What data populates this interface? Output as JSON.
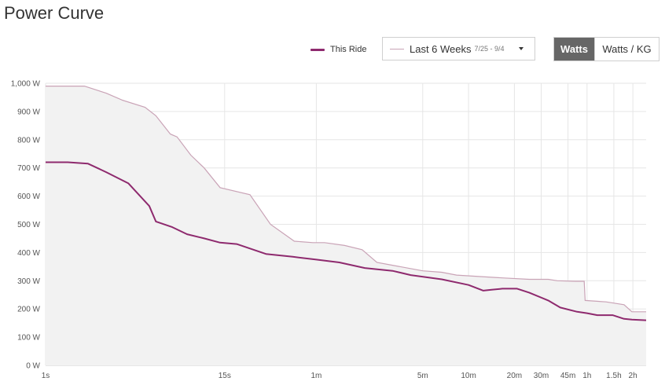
{
  "header": {
    "title": "Power Curve"
  },
  "legend": {
    "this_ride_label": "This Ride"
  },
  "range_select": {
    "label": "Last 6 Weeks",
    "dates": "7/25 - 9/4"
  },
  "unit_toggle": {
    "watts_label": "Watts",
    "watts_kg_label": "Watts / KG",
    "selected": "Watts"
  },
  "colors": {
    "this_ride": "#8e2a6e",
    "period_best": "#c9a3b6",
    "area_fill": "#f2f2f2",
    "grid": "#e6e6e6"
  },
  "chart_data": {
    "type": "line",
    "title": "Power Curve",
    "x_scale": "log",
    "x_unit": "seconds",
    "y_unit": "W",
    "ylim": [
      0,
      1000
    ],
    "xlim": [
      1,
      8800
    ],
    "y_ticks": [
      {
        "value": 0,
        "label": "0 W"
      },
      {
        "value": 100,
        "label": "100 W"
      },
      {
        "value": 200,
        "label": "200 W"
      },
      {
        "value": 300,
        "label": "300 W"
      },
      {
        "value": 400,
        "label": "400 W"
      },
      {
        "value": 500,
        "label": "500 W"
      },
      {
        "value": 600,
        "label": "600 W"
      },
      {
        "value": 700,
        "label": "700 W"
      },
      {
        "value": 800,
        "label": "800 W"
      },
      {
        "value": 900,
        "label": "900 W"
      },
      {
        "value": 1000,
        "label": "1,000 W"
      }
    ],
    "x_ticks": [
      {
        "value": 1,
        "label": "1s"
      },
      {
        "value": 15,
        "label": "15s"
      },
      {
        "value": 60,
        "label": "1m"
      },
      {
        "value": 300,
        "label": "5m"
      },
      {
        "value": 600,
        "label": "10m"
      },
      {
        "value": 1200,
        "label": "20m"
      },
      {
        "value": 1800,
        "label": "30m"
      },
      {
        "value": 2700,
        "label": "45m"
      },
      {
        "value": 3600,
        "label": "1h"
      },
      {
        "value": 5400,
        "label": "1.5h"
      },
      {
        "value": 7200,
        "label": "2h"
      }
    ],
    "grid": true,
    "legend_position": "top-right",
    "series": [
      {
        "name": "Last 6 Weeks",
        "points": [
          [
            1,
            990
          ],
          [
            1.8,
            990
          ],
          [
            2.5,
            965
          ],
          [
            3.2,
            940
          ],
          [
            4.5,
            915
          ],
          [
            5.3,
            885
          ],
          [
            6.6,
            820
          ],
          [
            7.3,
            810
          ],
          [
            9,
            745
          ],
          [
            11,
            700
          ],
          [
            14,
            630
          ],
          [
            22,
            605
          ],
          [
            30,
            500
          ],
          [
            43,
            440
          ],
          [
            57,
            435
          ],
          [
            68,
            435
          ],
          [
            92,
            425
          ],
          [
            120,
            410
          ],
          [
            150,
            365
          ],
          [
            190,
            355
          ],
          [
            300,
            335
          ],
          [
            400,
            330
          ],
          [
            500,
            320
          ],
          [
            700,
            315
          ],
          [
            1000,
            310
          ],
          [
            1500,
            305
          ],
          [
            2000,
            305
          ],
          [
            2300,
            300
          ],
          [
            3000,
            298
          ],
          [
            3450,
            298
          ],
          [
            3500,
            230
          ],
          [
            4800,
            225
          ],
          [
            6300,
            215
          ],
          [
            7100,
            190
          ],
          [
            8800,
            190
          ]
        ]
      },
      {
        "name": "This Ride",
        "points": [
          [
            1,
            720
          ],
          [
            1.4,
            720
          ],
          [
            1.9,
            715
          ],
          [
            2.5,
            685
          ],
          [
            3.5,
            645
          ],
          [
            4.8,
            565
          ],
          [
            5.3,
            510
          ],
          [
            6.8,
            490
          ],
          [
            8.5,
            465
          ],
          [
            11,
            450
          ],
          [
            14,
            435
          ],
          [
            18,
            430
          ],
          [
            28,
            395
          ],
          [
            42,
            385
          ],
          [
            60,
            375
          ],
          [
            85,
            365
          ],
          [
            125,
            345
          ],
          [
            190,
            335
          ],
          [
            250,
            320
          ],
          [
            400,
            305
          ],
          [
            600,
            285
          ],
          [
            750,
            265
          ],
          [
            850,
            268
          ],
          [
            1000,
            272
          ],
          [
            1250,
            272
          ],
          [
            1500,
            258
          ],
          [
            2000,
            230
          ],
          [
            2400,
            205
          ],
          [
            3100,
            190
          ],
          [
            3600,
            185
          ],
          [
            4200,
            178
          ],
          [
            5300,
            178
          ],
          [
            6300,
            165
          ],
          [
            7100,
            162
          ],
          [
            8800,
            160
          ]
        ]
      }
    ]
  }
}
